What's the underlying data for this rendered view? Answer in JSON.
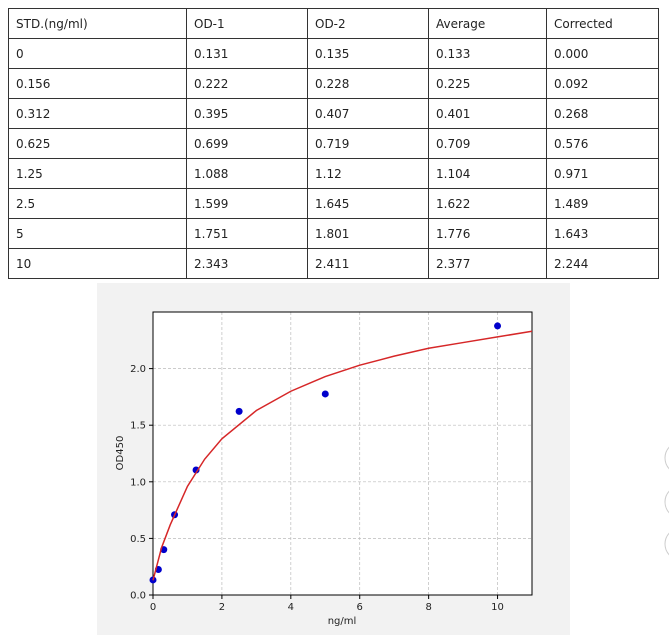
{
  "table": {
    "header": [
      "STD.(ng/ml)",
      "OD-1",
      "OD-2",
      "Average",
      "Corrected"
    ],
    "rows": [
      [
        "0",
        "0.131",
        "0.135",
        "0.133",
        "0.000"
      ],
      [
        "0.156",
        "0.222",
        "0.228",
        "0.225",
        "0.092"
      ],
      [
        "0.312",
        "0.395",
        "0.407",
        "0.401",
        "0.268"
      ],
      [
        "0.625",
        "0.699",
        "0.719",
        "0.709",
        "0.576"
      ],
      [
        "1.25",
        "1.088",
        "1.12",
        "1.104",
        "0.971"
      ],
      [
        "2.5",
        "1.599",
        "1.645",
        "1.622",
        "1.489"
      ],
      [
        "5",
        "1.751",
        "1.801",
        "1.776",
        "1.643"
      ],
      [
        "10",
        "2.343",
        "2.411",
        "2.377",
        "2.244"
      ]
    ]
  },
  "chart_data": {
    "type": "scatter",
    "xlabel": "ng/ml",
    "ylabel": "OD450",
    "xlim": [
      0,
      11
    ],
    "ylim": [
      0,
      2.5
    ],
    "xticks": [
      0,
      2,
      4,
      6,
      8,
      10
    ],
    "yticks": [
      {
        "value": 0,
        "label": "0.0"
      },
      0.5,
      {
        "value": 1,
        "label": "1.0"
      },
      1.5,
      {
        "value": 2,
        "label": "2.0"
      }
    ],
    "grid": true,
    "series": [
      {
        "style": "markers",
        "color": "#0000cc",
        "x": [
          0,
          0.156,
          0.312,
          0.625,
          1.25,
          2.5,
          5,
          10
        ],
        "values": [
          0.133,
          0.225,
          0.401,
          0.709,
          1.104,
          1.622,
          1.776,
          2.377
        ]
      },
      {
        "style": "line",
        "color": "#d62728",
        "x": [
          0,
          0.25,
          0.5,
          1,
          1.5,
          2,
          3,
          4,
          5,
          6,
          7,
          8,
          9,
          10,
          11
        ],
        "values": [
          0.13,
          0.42,
          0.62,
          0.96,
          1.2,
          1.38,
          1.63,
          1.8,
          1.93,
          2.03,
          2.11,
          2.18,
          2.23,
          2.28,
          2.33
        ]
      }
    ]
  }
}
